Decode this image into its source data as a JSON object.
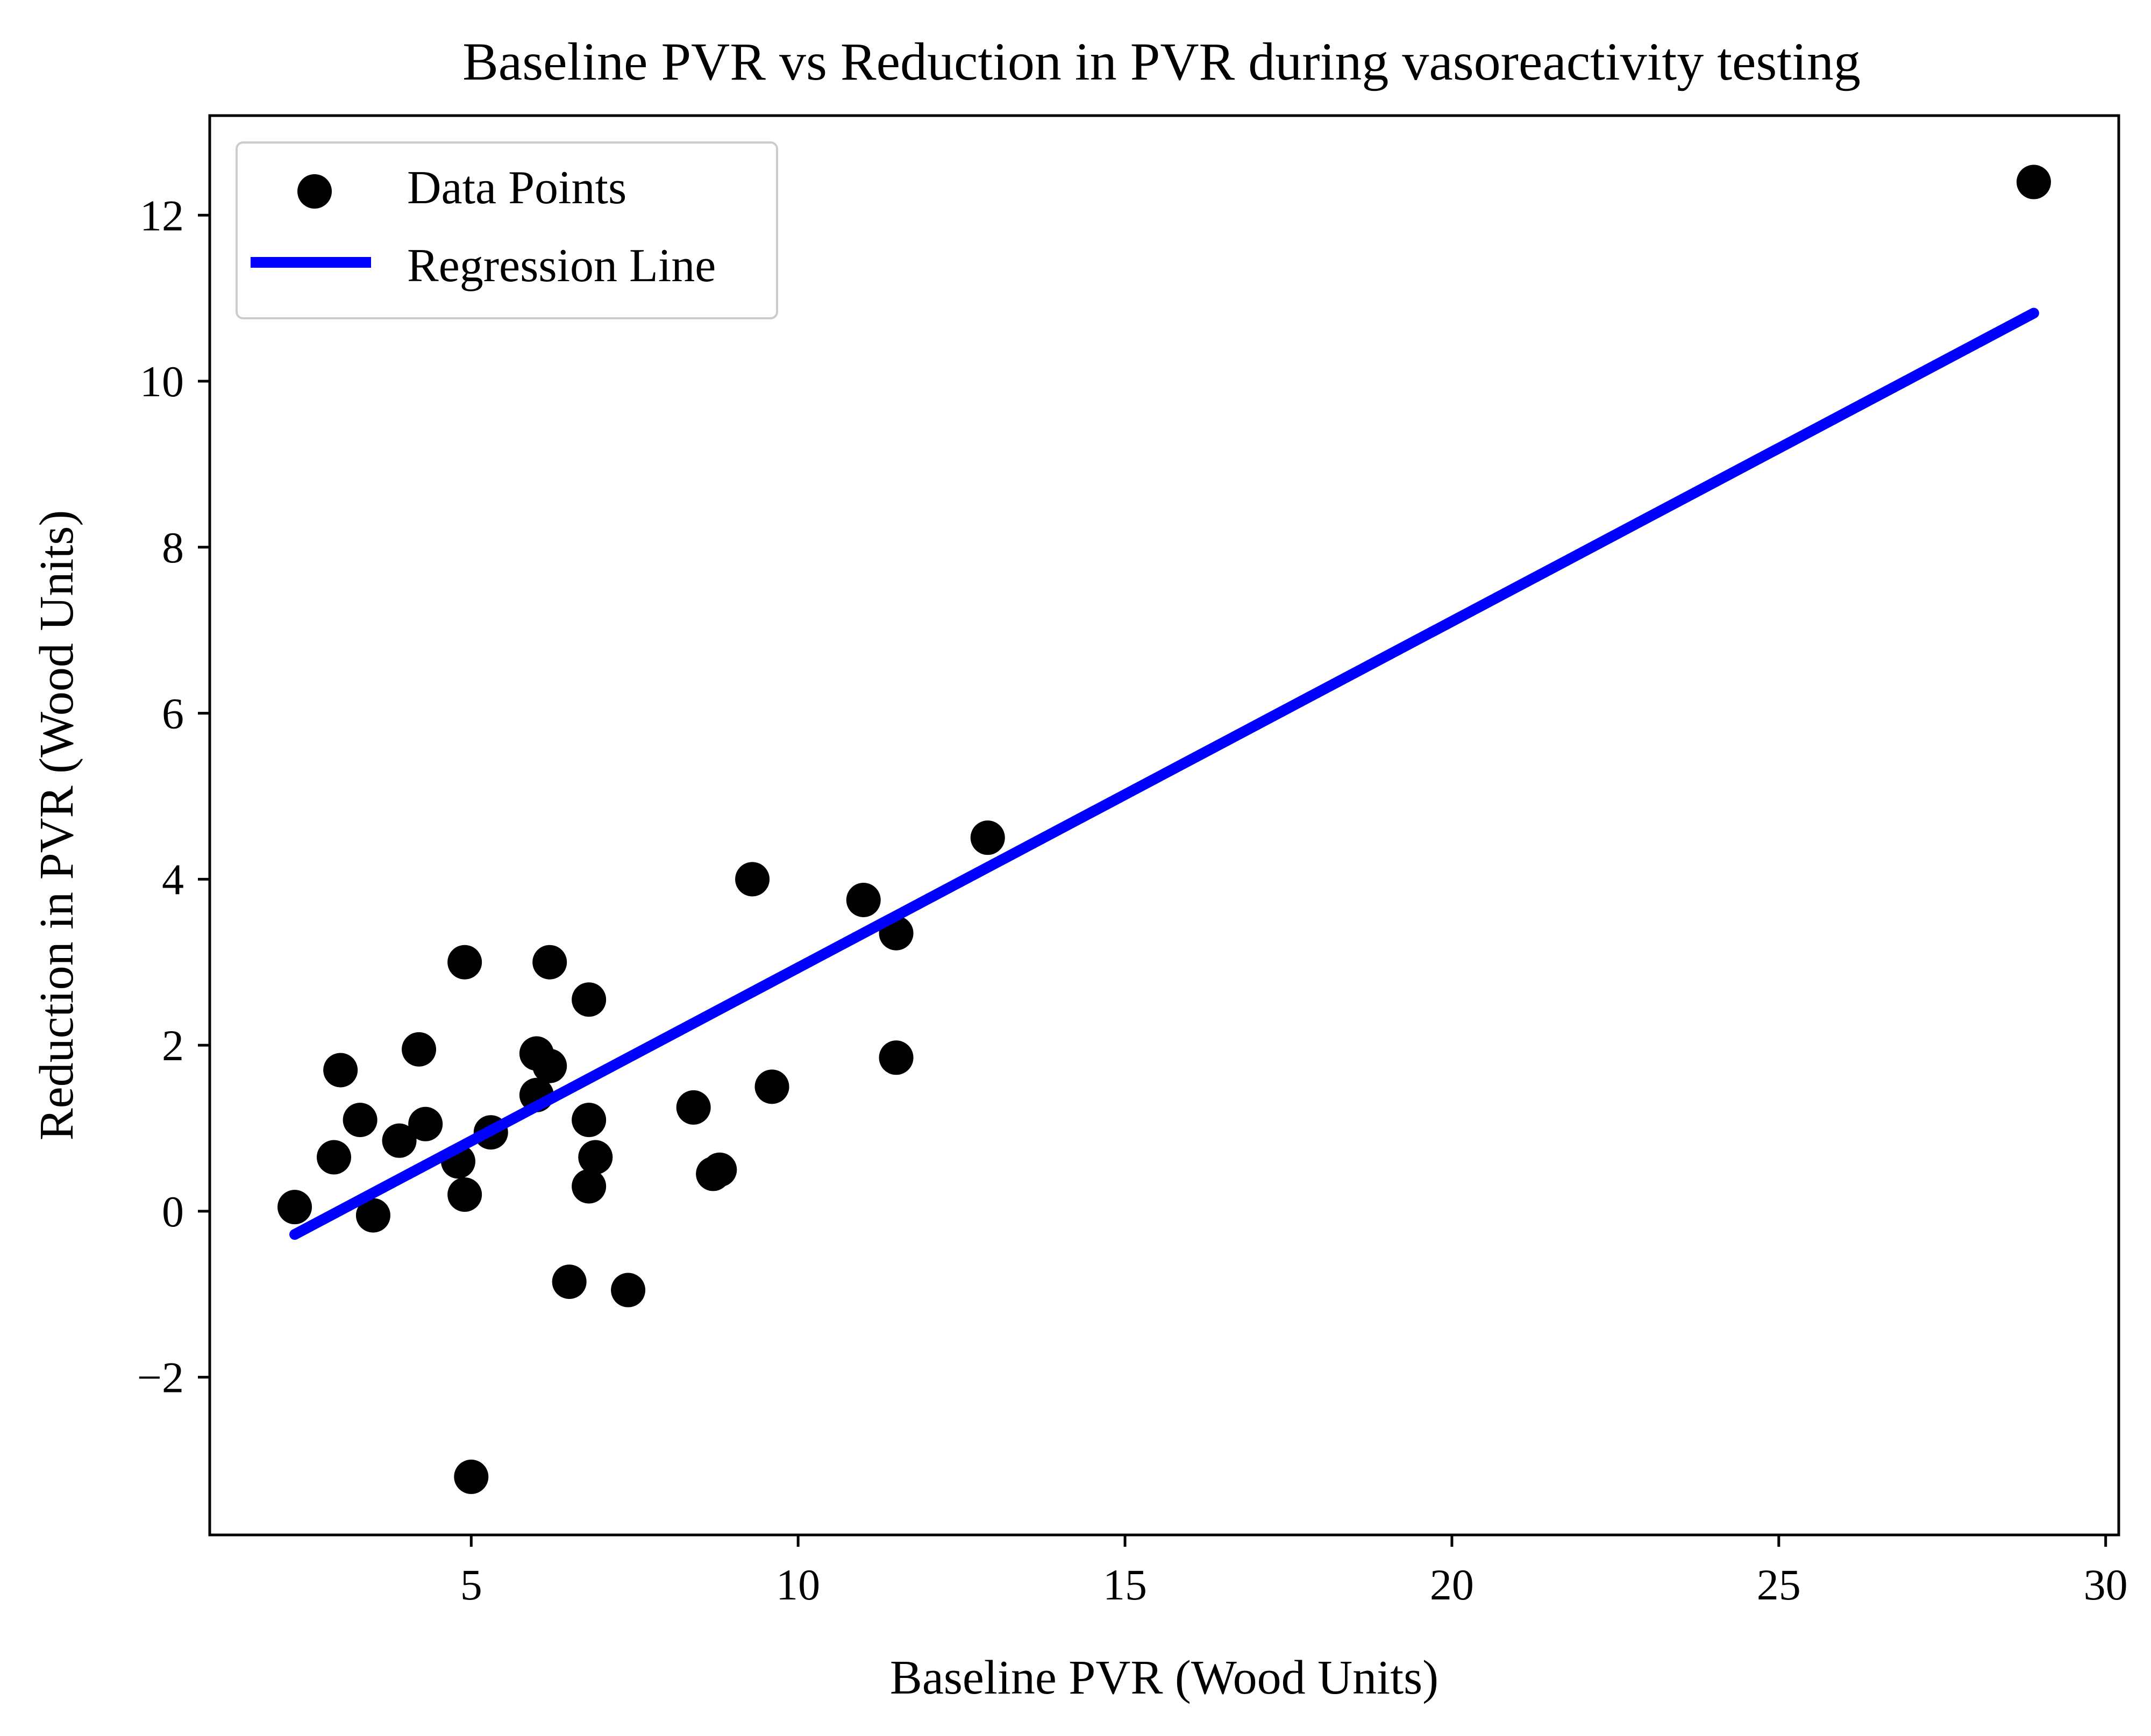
{
  "chart_data": {
    "type": "scatter",
    "title": "Baseline PVR vs Reduction in PVR during vasoreactivity testing",
    "xlabel": "Baseline PVR (Wood Units)",
    "ylabel": "Reduction in PVR (Wood Units)",
    "xlim": [
      1,
      30.2
    ],
    "ylim": [
      -3.9,
      13.2
    ],
    "xticks": [
      5,
      10,
      15,
      20,
      25,
      30
    ],
    "xtick_labels": [
      "5",
      "10",
      "15",
      "20",
      "25",
      "30"
    ],
    "yticks": [
      -2,
      0,
      2,
      4,
      6,
      8,
      10,
      12
    ],
    "ytick_labels": [
      "−2",
      "0",
      "2",
      "4",
      "6",
      "8",
      "10",
      "12"
    ],
    "grid": false,
    "legend_position": "top-left",
    "series": [
      {
        "name": "Data Points",
        "kind": "scatter",
        "color": "#000000",
        "points": [
          [
            2.3,
            0.05
          ],
          [
            2.9,
            0.65
          ],
          [
            3.0,
            1.7
          ],
          [
            3.3,
            1.1
          ],
          [
            3.5,
            -0.05
          ],
          [
            3.9,
            0.85
          ],
          [
            4.2,
            1.95
          ],
          [
            4.3,
            1.05
          ],
          [
            4.8,
            0.6
          ],
          [
            4.9,
            3.0
          ],
          [
            4.9,
            0.2
          ],
          [
            5.0,
            -3.2
          ],
          [
            5.3,
            0.95
          ],
          [
            6.0,
            1.9
          ],
          [
            6.0,
            1.4
          ],
          [
            6.2,
            3.0
          ],
          [
            6.2,
            1.75
          ],
          [
            6.5,
            -0.85
          ],
          [
            6.8,
            1.1
          ],
          [
            6.8,
            0.3
          ],
          [
            6.8,
            2.55
          ],
          [
            6.9,
            0.65
          ],
          [
            7.4,
            -0.95
          ],
          [
            8.4,
            1.25
          ],
          [
            8.7,
            0.45
          ],
          [
            8.8,
            0.5
          ],
          [
            9.3,
            4.0
          ],
          [
            9.6,
            1.5
          ],
          [
            11.0,
            3.75
          ],
          [
            11.5,
            3.35
          ],
          [
            11.5,
            1.85
          ],
          [
            12.9,
            4.5
          ],
          [
            28.9,
            12.4
          ]
        ]
      },
      {
        "name": "Regression Line",
        "kind": "line",
        "color": "#0000ff",
        "points": [
          [
            2.3,
            -0.28
          ],
          [
            28.9,
            10.82
          ]
        ]
      }
    ]
  }
}
